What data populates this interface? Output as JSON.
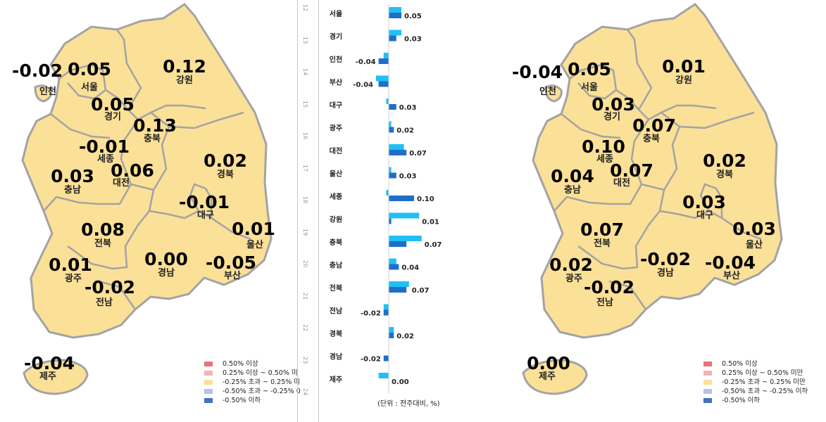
{
  "colors": {
    "land": "#fbe097",
    "border": "#a3a3a3",
    "bar_prev": "#1fc0f5",
    "bar_curr": "#1f6fc9"
  },
  "left_map": {
    "regions": [
      {
        "name": "인천",
        "value": "-0.02"
      },
      {
        "name": "서울",
        "value": "0.05"
      },
      {
        "name": "경기",
        "value": "0.05"
      },
      {
        "name": "강원",
        "value": "0.12"
      },
      {
        "name": "충북",
        "value": "0.13"
      },
      {
        "name": "세종",
        "value": "-0.01"
      },
      {
        "name": "대전",
        "value": "0.06"
      },
      {
        "name": "충남",
        "value": "0.03"
      },
      {
        "name": "경북",
        "value": "0.02"
      },
      {
        "name": "대구",
        "value": "-0.01"
      },
      {
        "name": "울산",
        "value": "0.01"
      },
      {
        "name": "전북",
        "value": "0.08"
      },
      {
        "name": "경남",
        "value": "0.00"
      },
      {
        "name": "부산",
        "value": "-0.05"
      },
      {
        "name": "광주",
        "value": "0.01"
      },
      {
        "name": "전남",
        "value": "-0.02"
      },
      {
        "name": "제주",
        "value": "-0.04"
      }
    ],
    "legend": [
      {
        "label": "0.50% 이상",
        "color": "#e8737b"
      },
      {
        "label": "0.25% 이상 ~ 0.50% 미",
        "color": "#f3b3b6"
      },
      {
        "label": "-0.25% 초과 ~ 0.25% 미",
        "color": "#fbe097"
      },
      {
        "label": "-0.50% 초과 ~ -0.25% 0",
        "color": "#b6c2e8"
      },
      {
        "label": "-0.50% 이하",
        "color": "#4472c4"
      }
    ]
  },
  "right_map": {
    "regions": [
      {
        "name": "인천",
        "value": "-0.04"
      },
      {
        "name": "서울",
        "value": "0.05"
      },
      {
        "name": "경기",
        "value": "0.03"
      },
      {
        "name": "강원",
        "value": "0.01"
      },
      {
        "name": "충북",
        "value": "0.07"
      },
      {
        "name": "세종",
        "value": "0.10"
      },
      {
        "name": "대전",
        "value": "0.07"
      },
      {
        "name": "충남",
        "value": "0.04"
      },
      {
        "name": "경북",
        "value": "0.02"
      },
      {
        "name": "대구",
        "value": "0.03"
      },
      {
        "name": "울산",
        "value": "0.03"
      },
      {
        "name": "전북",
        "value": "0.07"
      },
      {
        "name": "경남",
        "value": "-0.02"
      },
      {
        "name": "부산",
        "value": "-0.04"
      },
      {
        "name": "광주",
        "value": "0.02"
      },
      {
        "name": "전남",
        "value": "-0.02"
      },
      {
        "name": "제주",
        "value": "0.00"
      }
    ],
    "legend": [
      {
        "label": "0.50% 이상",
        "color": "#e8737b"
      },
      {
        "label": "0.25% 이상 ~ 0.50% 미만",
        "color": "#f3b3b6"
      },
      {
        "label": "-0.25% 초과 ~ 0.25% 미만",
        "color": "#fbe097"
      },
      {
        "label": "-0.50% 초과 ~ -0.25% 이하",
        "color": "#b6c2e8"
      },
      {
        "label": "-0.50% 이하",
        "color": "#4472c4"
      }
    ]
  },
  "ruler_labels": [
    "12",
    "13",
    "14",
    "15",
    "16",
    "17",
    "18",
    "19",
    "20",
    "21",
    "22",
    "23",
    "24"
  ],
  "unit_label": "(단위 : 전주대비, %)",
  "chart_data": {
    "type": "bar",
    "orientation": "horizontal",
    "categories": [
      "서울",
      "경기",
      "인천",
      "부산",
      "대구",
      "광주",
      "대전",
      "울산",
      "세종",
      "강원",
      "충북",
      "충남",
      "전북",
      "전남",
      "경북",
      "경남",
      "제주"
    ],
    "series": [
      {
        "values": [
          0.05,
          0.05,
          -0.02,
          -0.05,
          -0.01,
          0.01,
          0.06,
          0.01,
          -0.01,
          0.12,
          0.13,
          0.03,
          0.08,
          -0.02,
          0.02,
          0.0,
          -0.04
        ]
      },
      {
        "values": [
          0.05,
          0.03,
          -0.04,
          -0.04,
          0.03,
          0.02,
          0.07,
          0.03,
          0.1,
          0.01,
          0.07,
          0.04,
          0.07,
          -0.02,
          0.02,
          -0.02,
          0.0
        ]
      }
    ],
    "data_labels": [
      "0.05",
      "0.03",
      "-0.04",
      "-0.04",
      "0.03",
      "0.02",
      "0.07",
      "0.03",
      "0.10",
      "0.01",
      "0.07",
      "0.04",
      "0.07",
      "-0.02",
      "0.02",
      "-0.02",
      "0.00"
    ]
  }
}
